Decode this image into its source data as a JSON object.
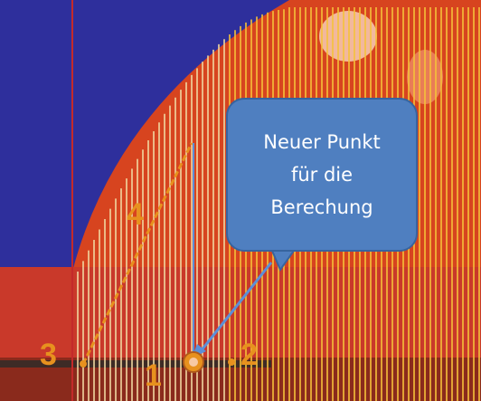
{
  "callout": {
    "line1": "Neuer Punkt",
    "line2": "für die",
    "line3": "Berechung"
  },
  "labels": {
    "p1": "1",
    "p2": "2",
    "p3": "3",
    "p4": "4"
  },
  "colors": {
    "background": "#2e2f9c",
    "fan": "#d7441f",
    "orange_label": "#e7911e",
    "callout_fill": "#4f7fc0",
    "callout_border": "#37649f",
    "arrow": "#5b8fd8",
    "yellow_lines": "#f5c23a"
  }
}
